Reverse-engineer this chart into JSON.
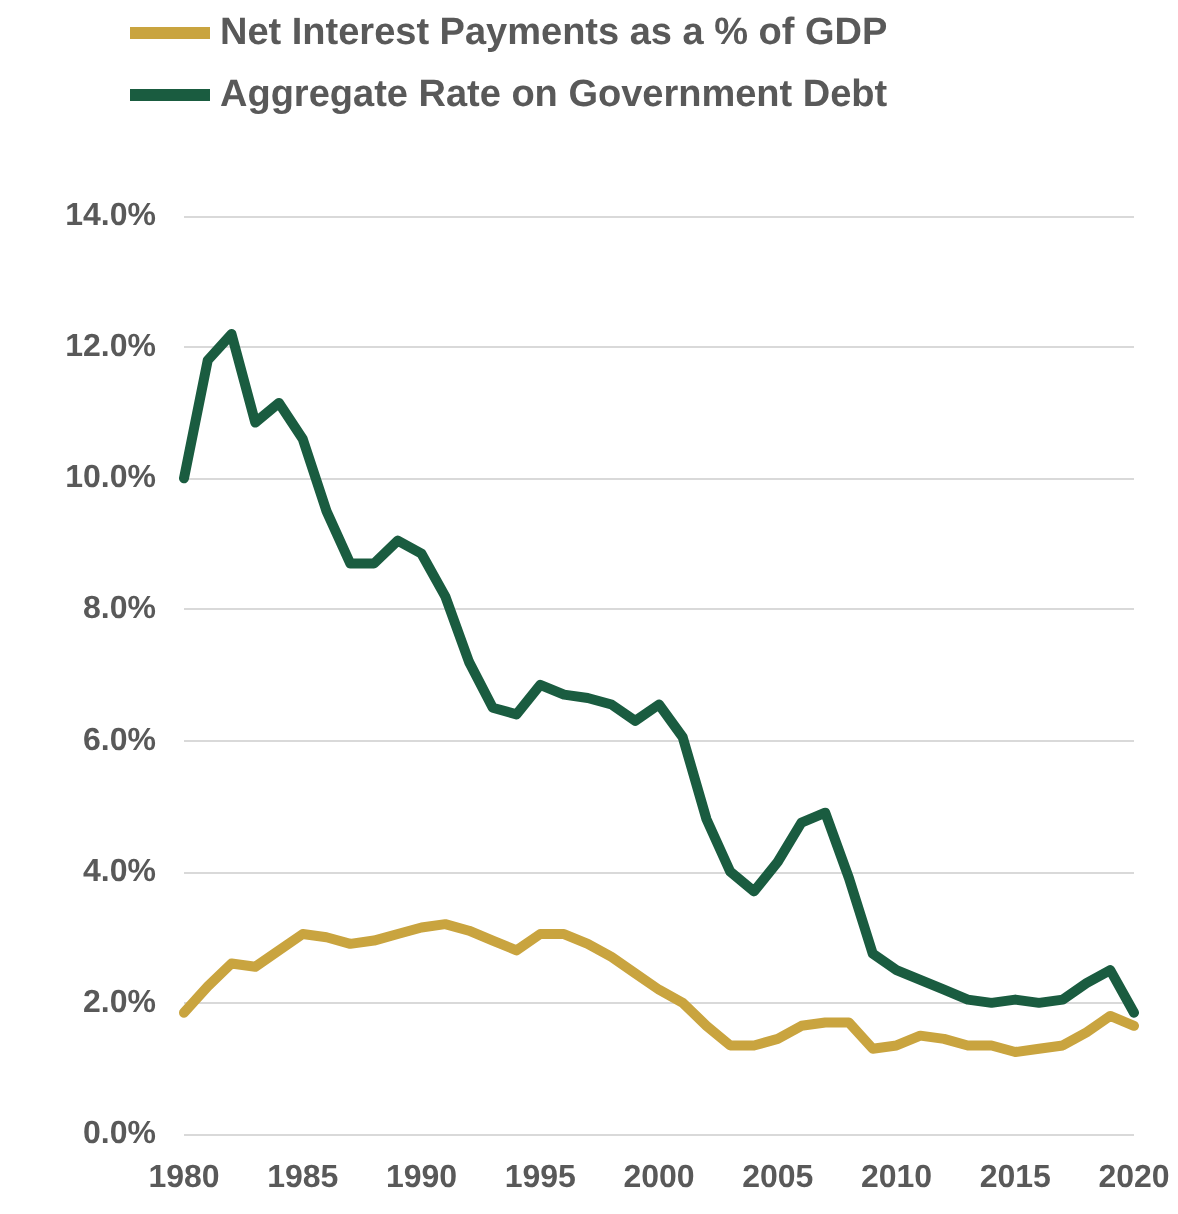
{
  "chart_data": {
    "type": "line",
    "x": [
      1980,
      1981,
      1982,
      1983,
      1984,
      1985,
      1986,
      1987,
      1988,
      1989,
      1990,
      1991,
      1992,
      1993,
      1994,
      1995,
      1996,
      1997,
      1998,
      1999,
      2000,
      2001,
      2002,
      2003,
      2004,
      2005,
      2006,
      2007,
      2008,
      2009,
      2010,
      2011,
      2012,
      2013,
      2014,
      2015,
      2016,
      2017,
      2018,
      2019,
      2020
    ],
    "series": [
      {
        "name": "Net Interest Payments as a % of GDP",
        "color": "#c9a43f",
        "values": [
          1.85,
          2.25,
          2.6,
          2.55,
          2.8,
          3.05,
          3.0,
          2.9,
          2.95,
          3.05,
          3.15,
          3.2,
          3.1,
          2.95,
          2.8,
          3.05,
          3.05,
          2.9,
          2.7,
          2.45,
          2.2,
          2.0,
          1.65,
          1.35,
          1.35,
          1.45,
          1.65,
          1.7,
          1.7,
          1.3,
          1.35,
          1.5,
          1.45,
          1.35,
          1.35,
          1.25,
          1.3,
          1.35,
          1.55,
          1.8,
          1.65
        ]
      },
      {
        "name": "Aggregate Rate on Government Debt",
        "color": "#1a5c40",
        "values": [
          10.0,
          11.8,
          12.2,
          10.85,
          11.15,
          10.6,
          9.5,
          8.7,
          8.7,
          9.05,
          8.85,
          8.2,
          7.2,
          6.5,
          6.4,
          6.85,
          6.7,
          6.65,
          6.55,
          6.3,
          6.55,
          6.05,
          4.8,
          4.0,
          3.7,
          4.15,
          4.75,
          4.9,
          3.9,
          2.75,
          2.5,
          2.35,
          2.2,
          2.05,
          2.0,
          2.05,
          2.0,
          2.05,
          2.3,
          2.5,
          1.85
        ]
      }
    ],
    "xlim": [
      1980,
      2020
    ],
    "xticks": [
      1980,
      1985,
      1990,
      1995,
      2000,
      2005,
      2010,
      2015,
      2020
    ],
    "ylim": [
      0,
      14
    ],
    "yticks": [
      {
        "value": 0,
        "label": "0.0%"
      },
      {
        "value": 2,
        "label": "2.0%"
      },
      {
        "value": 4,
        "label": "4.0%"
      },
      {
        "value": 6,
        "label": "6.0%"
      },
      {
        "value": 8,
        "label": "8.0%"
      },
      {
        "value": 10,
        "label": "10.0%"
      },
      {
        "value": 12,
        "label": "12.0%"
      },
      {
        "value": 14,
        "label": "14.0%"
      }
    ],
    "grid": "y",
    "legend": "top left",
    "marker": "none",
    "line_style": "solid"
  }
}
